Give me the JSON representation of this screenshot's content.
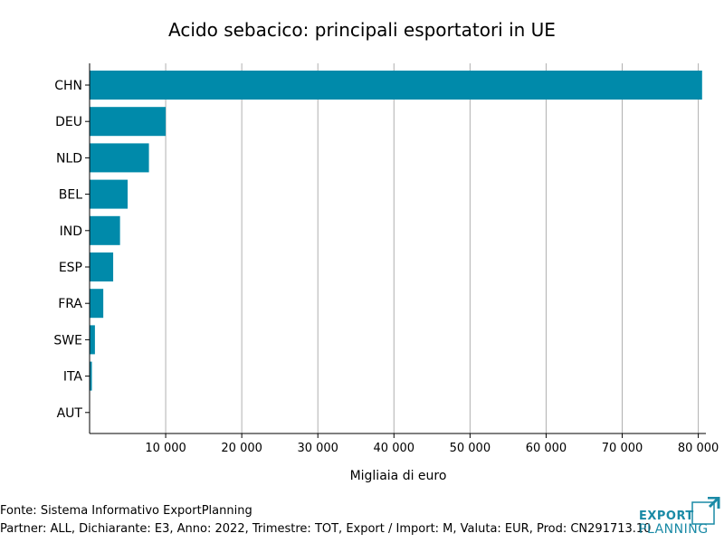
{
  "chart_data": {
    "type": "bar",
    "orientation": "horizontal",
    "title": "Acido sebacico: principali esportatori in UE",
    "xlabel": "Migliaia di euro",
    "ylabel": "",
    "categories": [
      "CHN",
      "DEU",
      "NLD",
      "BEL",
      "IND",
      "ESP",
      "FRA",
      "SWE",
      "ITA",
      "AUT"
    ],
    "values": [
      80500,
      10000,
      7800,
      5000,
      4000,
      3100,
      1800,
      700,
      300,
      0
    ],
    "xlim": [
      0,
      81000
    ],
    "xticks": [
      10000,
      20000,
      30000,
      40000,
      50000,
      60000,
      70000,
      80000
    ],
    "xtick_labels": [
      "10 000",
      "20 000",
      "30 000",
      "40 000",
      "50 000",
      "60 000",
      "70 000",
      "80 000"
    ],
    "grid": "vertical",
    "bar_color": "#008aaa"
  },
  "footer": {
    "source": "Fonte: Sistema Informativo ExportPlanning",
    "params": "Partner: ALL, Dichiarante: E3, Anno: 2022, Trimestre: TOT, Export / Import: M, Valuta: EUR, Prod: CN291713.10"
  },
  "logo": {
    "line1": "EXPORT",
    "line2": "PLANNING",
    "color": "#1a8aa6"
  }
}
